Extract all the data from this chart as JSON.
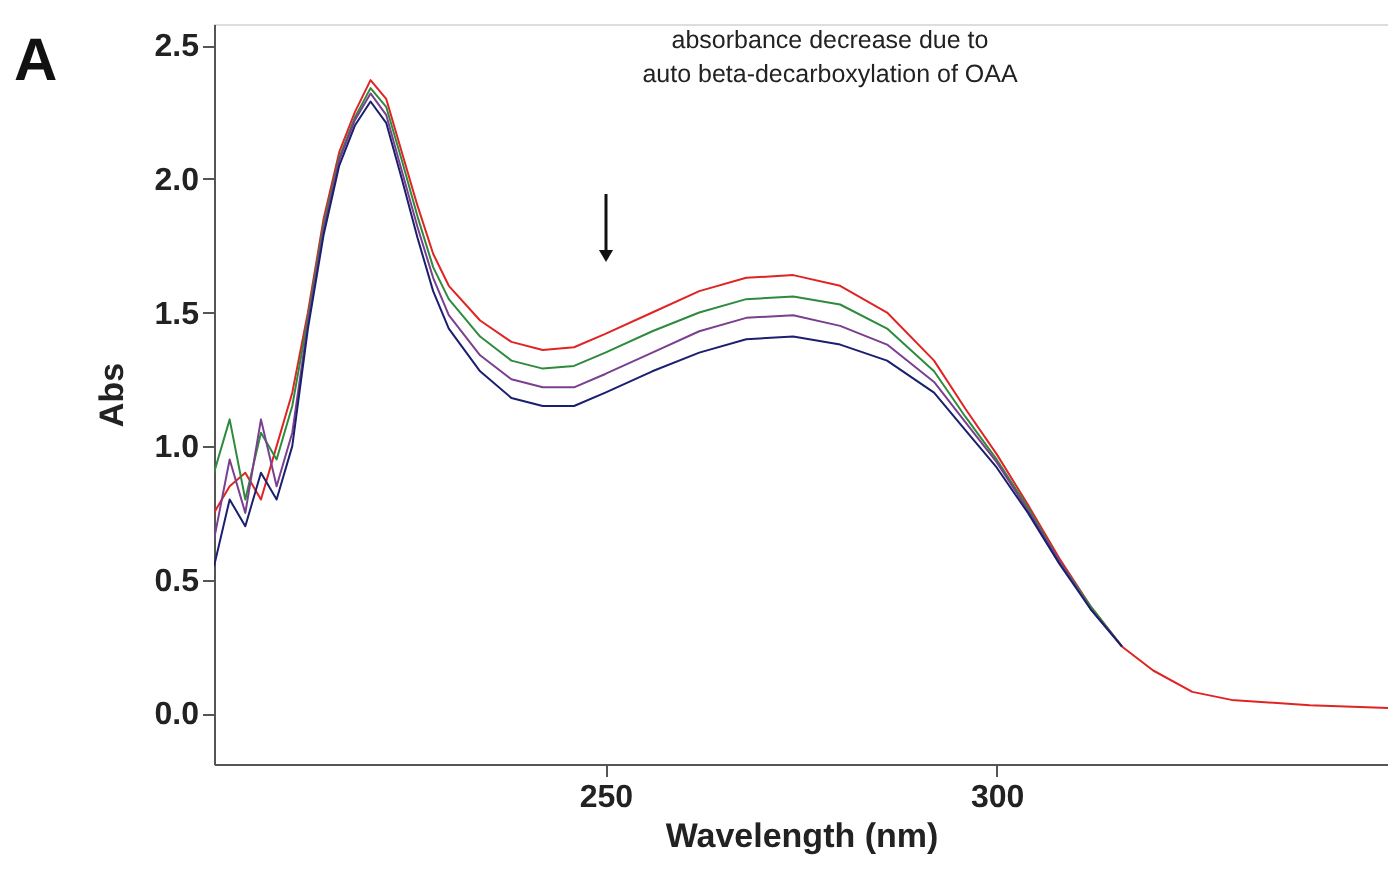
{
  "chart_data": {
    "type": "line",
    "title": "A",
    "xlabel": "Wavelength (nm)",
    "ylabel": "Abs",
    "annotations": [
      "absorbance decrease  due to\nauto beta-decarboxylation of OAA"
    ],
    "x": [
      200,
      202,
      204,
      206,
      208,
      210,
      212,
      214,
      216,
      218,
      220,
      222,
      224,
      226,
      228,
      230,
      234,
      238,
      242,
      246,
      250,
      256,
      262,
      268,
      274,
      280,
      286,
      292,
      296,
      300,
      304,
      308,
      312,
      316,
      320,
      325,
      330,
      340,
      350
    ],
    "series": [
      {
        "color": "#e02424",
        "values": [
          0.75,
          0.85,
          0.9,
          0.8,
          1.0,
          1.2,
          1.5,
          1.85,
          2.1,
          2.25,
          2.37,
          2.3,
          2.1,
          1.9,
          1.72,
          1.6,
          1.47,
          1.39,
          1.36,
          1.37,
          1.42,
          1.5,
          1.58,
          1.63,
          1.64,
          1.6,
          1.5,
          1.32,
          1.14,
          0.97,
          0.78,
          0.58,
          0.4,
          0.25,
          0.16,
          0.08,
          0.05,
          0.03,
          0.02
        ]
      },
      {
        "color": "#2e8b3e",
        "values": [
          0.9,
          1.1,
          0.8,
          1.05,
          0.95,
          1.15,
          1.48,
          1.83,
          2.08,
          2.23,
          2.34,
          2.27,
          2.07,
          1.86,
          1.67,
          1.55,
          1.41,
          1.32,
          1.29,
          1.3,
          1.35,
          1.43,
          1.5,
          1.55,
          1.56,
          1.53,
          1.44,
          1.28,
          1.11,
          0.95,
          0.77,
          0.57,
          0.4,
          0.25,
          null,
          null,
          null,
          null,
          null
        ]
      },
      {
        "color": "#7a3f8f",
        "values": [
          0.65,
          0.95,
          0.75,
          1.1,
          0.85,
          1.05,
          1.46,
          1.81,
          2.07,
          2.22,
          2.32,
          2.24,
          2.03,
          1.82,
          1.63,
          1.49,
          1.34,
          1.25,
          1.22,
          1.22,
          1.27,
          1.35,
          1.43,
          1.48,
          1.49,
          1.45,
          1.38,
          1.24,
          1.09,
          0.94,
          0.76,
          0.57,
          0.39,
          0.25,
          null,
          null,
          null,
          null,
          null
        ]
      },
      {
        "color": "#1a1f6e",
        "values": [
          0.55,
          0.8,
          0.7,
          0.9,
          0.8,
          1.0,
          1.44,
          1.79,
          2.05,
          2.2,
          2.29,
          2.21,
          2.0,
          1.78,
          1.58,
          1.44,
          1.28,
          1.18,
          1.15,
          1.15,
          1.2,
          1.28,
          1.35,
          1.4,
          1.41,
          1.38,
          1.32,
          1.2,
          1.06,
          0.92,
          0.75,
          0.56,
          0.39,
          0.25,
          null,
          null,
          null,
          null,
          null
        ]
      }
    ],
    "xlim": [
      200,
      350
    ],
    "xticks": [
      250,
      300
    ],
    "ylim": [
      -0.19,
      2.58
    ],
    "yticks": [
      {
        "value": 0,
        "label": "0.0"
      },
      {
        "value": 0.5,
        "label": "0.5"
      },
      {
        "value": 1,
        "label": "1.0"
      },
      {
        "value": 1.5,
        "label": "1.5"
      },
      {
        "value": 2,
        "label": "2.0"
      },
      {
        "value": 2.5,
        "label": "2.5"
      }
    ],
    "grid": false,
    "marker": "none",
    "line_style": "solid"
  }
}
